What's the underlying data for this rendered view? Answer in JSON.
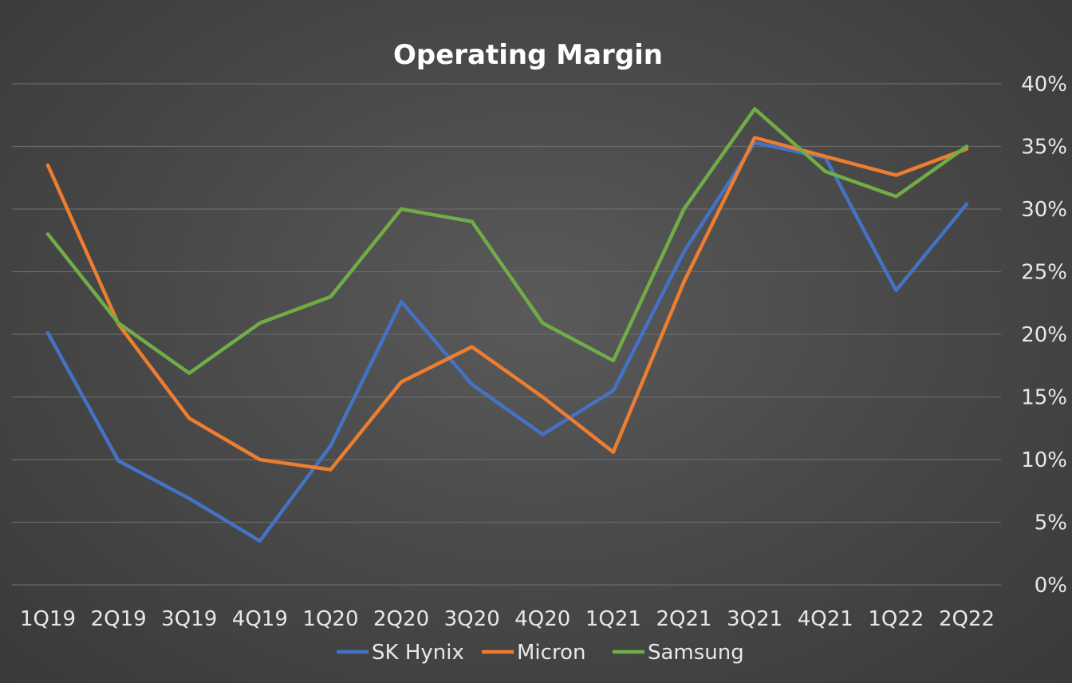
{
  "chart_data": {
    "type": "line",
    "title": "Operating Margin",
    "categories": [
      "1Q19",
      "2Q19",
      "3Q19",
      "4Q19",
      "1Q20",
      "2Q20",
      "3Q20",
      "4Q20",
      "1Q21",
      "2Q21",
      "3Q21",
      "4Q21",
      "1Q22",
      "2Q22"
    ],
    "y_ticks": [
      "0%",
      "5%",
      "10%",
      "15%",
      "20%",
      "25%",
      "30%",
      "35%",
      "40%"
    ],
    "ylim": [
      0,
      40
    ],
    "y_axis_side": "right",
    "grid": true,
    "legend_position": "bottom",
    "series": [
      {
        "name": "SK Hynix",
        "color": "#4472C4",
        "values": [
          20.1,
          9.9,
          6.9,
          3.5,
          11.1,
          22.6,
          16.0,
          12.0,
          15.5,
          26.6,
          35.3,
          34.1,
          23.5,
          30.4
        ]
      },
      {
        "name": "Micron",
        "color": "#ED7D31",
        "values": [
          33.5,
          20.8,
          13.3,
          10.0,
          9.2,
          16.2,
          19.0,
          15.0,
          10.6,
          24.2,
          35.7,
          34.2,
          32.7,
          34.8
        ]
      },
      {
        "name": "Samsung",
        "color": "#70AD47",
        "values": [
          28.0,
          20.9,
          16.9,
          20.9,
          23.0,
          30.0,
          29.0,
          20.9,
          17.9,
          30.0,
          38.0,
          33.0,
          31.0,
          35.0
        ]
      }
    ]
  }
}
